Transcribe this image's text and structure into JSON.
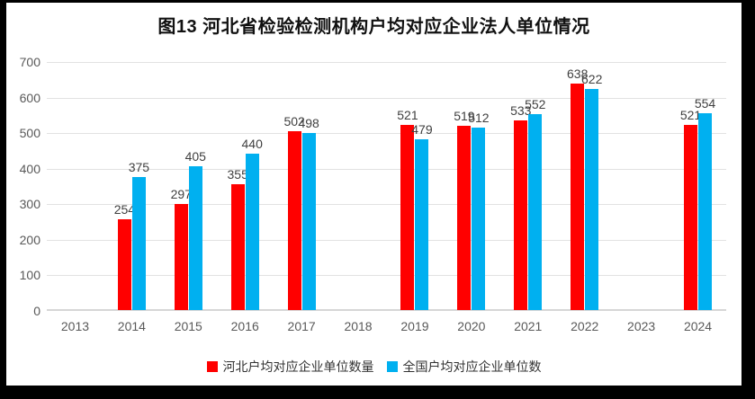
{
  "title": "图13 河北省检验检测机构户均对应企业法人单位情况",
  "chart_data": {
    "type": "bar",
    "title": "图13 河北省检验检测机构户均对应企业法人单位情况",
    "categories": [
      "2013",
      "2014",
      "2015",
      "2016",
      "2017",
      "2018",
      "2019",
      "2020",
      "2021",
      "2022",
      "2023",
      "2024"
    ],
    "series": [
      {
        "name": "河北户均对应企业单位数量",
        "color": "#FF0000",
        "values": [
          null,
          254,
          297,
          355,
          502,
          null,
          521,
          519,
          533,
          638,
          null,
          521
        ]
      },
      {
        "name": "全国户均对应企业单位数",
        "color": "#00B0F0",
        "values": [
          null,
          375,
          405,
          440,
          498,
          null,
          479,
          512,
          552,
          622,
          null,
          554
        ]
      }
    ],
    "xlabel": "",
    "ylabel": "",
    "ylim": [
      0,
      700
    ],
    "ytick_step": 100,
    "yticks": [
      0,
      100,
      200,
      300,
      400,
      500,
      600,
      700
    ],
    "grid": true,
    "data_labels": true,
    "legend_position": "bottom"
  },
  "colors": {
    "frame_border": "#000000",
    "background": "#ffffff",
    "gridline": "#e2e2e2",
    "axis_text": "#595959",
    "data_label_text": "#404040",
    "title_text": "#111111"
  }
}
